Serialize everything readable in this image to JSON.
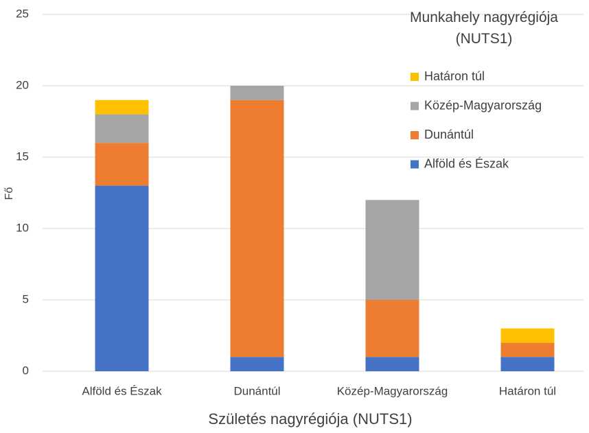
{
  "chart_data": {
    "type": "stacked_bar",
    "categories": [
      "Alföld és Észak",
      "Dunántúl",
      "Közép-Magyarország",
      "Határon túl"
    ],
    "series": [
      {
        "name": "Alföld és Észak",
        "color": "#4472c4",
        "values": [
          13,
          1,
          1,
          1
        ]
      },
      {
        "name": "Dunántúl",
        "color": "#ed7d31",
        "values": [
          3,
          18,
          4,
          1
        ]
      },
      {
        "name": "Közép-Magyarország",
        "color": "#a5a5a5",
        "values": [
          2,
          1,
          7,
          0
        ]
      },
      {
        "name": "Határon túl",
        "color": "#ffc000",
        "values": [
          1,
          0,
          0,
          1
        ]
      }
    ],
    "ylim": [
      0,
      25
    ],
    "yticks": [
      0,
      5,
      10,
      15,
      20,
      25
    ],
    "grid": true,
    "y_label": "Fő",
    "x_label": "Születés nagyrégiója (NUTS1)",
    "legend_title": "Munkahely nagyrégiója (NUTS1)",
    "legend_position": "upper right"
  }
}
